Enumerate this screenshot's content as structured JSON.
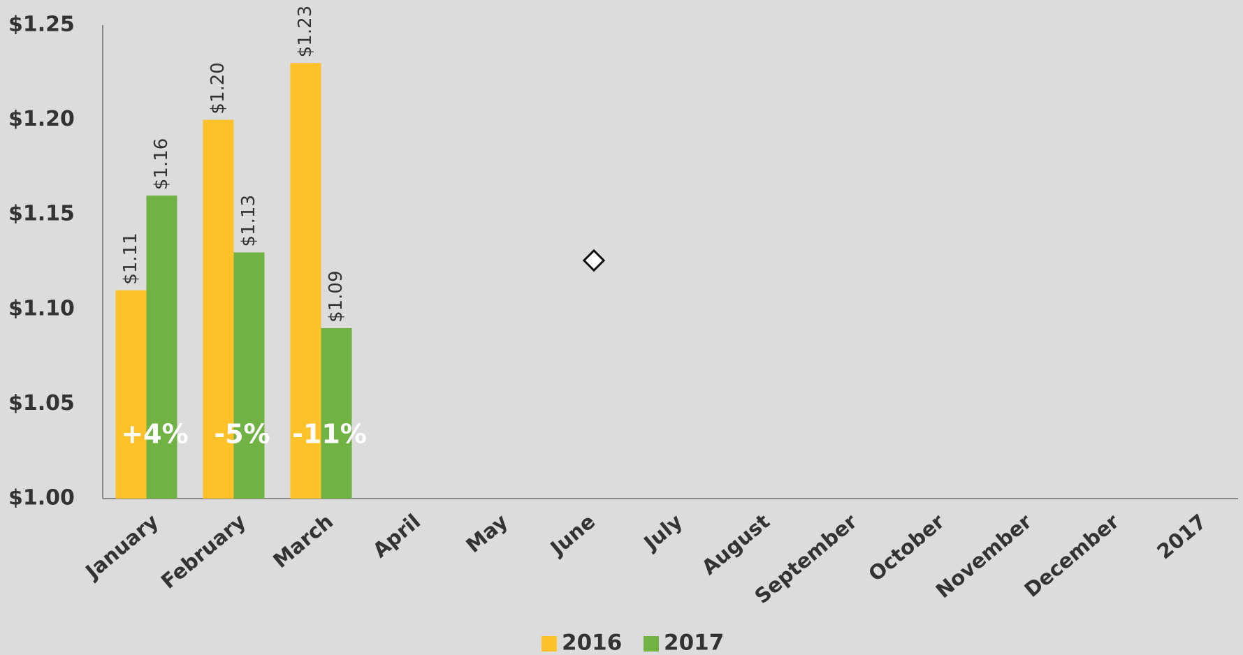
{
  "chart_data": {
    "type": "bar",
    "categories": [
      "January",
      "February",
      "March",
      "April",
      "May",
      "June",
      "July",
      "August",
      "September",
      "October",
      "November",
      "December",
      "2017"
    ],
    "series": [
      {
        "name": "2016",
        "color": "#fdc12a",
        "values": [
          1.11,
          1.2,
          1.23,
          null,
          null,
          null,
          null,
          null,
          null,
          null,
          null,
          null,
          null
        ],
        "value_labels": [
          "$1.11",
          "$1.20",
          "$1.23",
          null,
          null,
          null,
          null,
          null,
          null,
          null,
          null,
          null,
          null
        ]
      },
      {
        "name": "2017",
        "color": "#70b244",
        "values": [
          1.16,
          1.13,
          1.09,
          null,
          null,
          null,
          null,
          null,
          null,
          null,
          null,
          null,
          null
        ],
        "value_labels": [
          "$1.16",
          "$1.13",
          "$1.09",
          null,
          null,
          null,
          null,
          null,
          null,
          null,
          null,
          null,
          null
        ]
      }
    ],
    "annotations": [
      "+4%",
      "-5%",
      "-11%"
    ],
    "ylim": [
      1.0,
      1.25
    ],
    "yticks": [
      {
        "value": 1.0,
        "label": "$1.00"
      },
      {
        "value": 1.05,
        "label": "$1.05"
      },
      {
        "value": 1.1,
        "label": "$1.10"
      },
      {
        "value": 1.15,
        "label": "$1.15"
      },
      {
        "value": 1.2,
        "label": "$1.20"
      },
      {
        "value": 1.25,
        "label": "$1.25"
      }
    ],
    "grid": false,
    "legend": "bottom"
  }
}
